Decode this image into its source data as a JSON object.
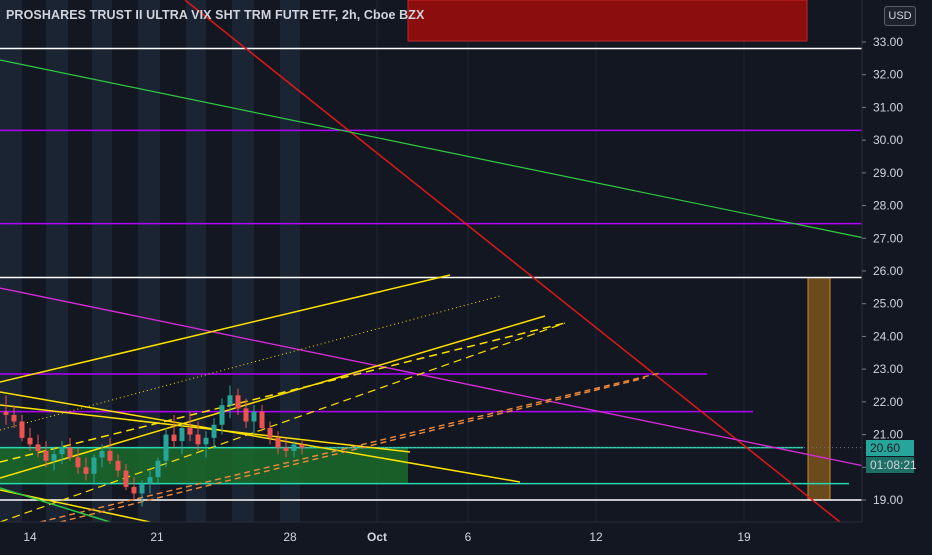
{
  "header": {
    "title": "PROSHARES TRUST II ULTRA VIX SHT TRM FUTR ETF, 2h, Cboe BZX",
    "currency_button": "USD"
  },
  "price_tags": {
    "last_price": "20.60",
    "countdown": "01:08:21"
  },
  "colors": {
    "background": "#131722",
    "axis_text": "#d1d4dc",
    "up_candle": "#26a69a",
    "down_candle": "#ef5350",
    "price_tag": "#26a69a"
  },
  "chart_data": {
    "type": "candlestick",
    "title": "PROSHARES TRUST II ULTRA VIX SHT TRM FUTR ETF, 2h, Cboe BZX",
    "y_ticks": [
      "33.00",
      "32.00",
      "31.00",
      "30.00",
      "29.00",
      "28.00",
      "27.00",
      "26.00",
      "25.00",
      "24.00",
      "23.00",
      "22.00",
      "21.00",
      "20.00",
      "19.00"
    ],
    "ylim": [
      18.5,
      34.2
    ],
    "x_ticks": [
      "14",
      "21",
      "28",
      "Oct",
      "6",
      "12",
      "19"
    ],
    "last_price": 20.6,
    "candles_approx": [
      [
        21.7,
        22.2,
        21.3,
        21.6
      ],
      [
        21.6,
        21.9,
        21.2,
        21.4
      ],
      [
        21.4,
        21.6,
        20.8,
        20.9
      ],
      [
        20.9,
        21.2,
        20.5,
        20.7
      ],
      [
        20.7,
        21.0,
        20.3,
        20.5
      ],
      [
        20.5,
        20.8,
        20.0,
        20.2
      ],
      [
        20.2,
        20.6,
        19.9,
        20.4
      ],
      [
        20.4,
        20.8,
        20.1,
        20.6
      ],
      [
        20.6,
        20.9,
        20.2,
        20.3
      ],
      [
        20.3,
        20.6,
        19.8,
        20.0
      ],
      [
        20.0,
        20.3,
        19.6,
        19.8
      ],
      [
        19.8,
        20.4,
        19.5,
        20.3
      ],
      [
        20.3,
        20.7,
        20.0,
        20.5
      ],
      [
        20.5,
        20.9,
        20.1,
        20.2
      ],
      [
        20.2,
        20.4,
        19.7,
        19.9
      ],
      [
        19.9,
        20.1,
        19.3,
        19.4
      ],
      [
        19.4,
        19.7,
        19.0,
        19.2
      ],
      [
        19.2,
        19.6,
        18.8,
        19.5
      ],
      [
        19.5,
        19.9,
        19.2,
        19.7
      ],
      [
        19.7,
        20.3,
        19.5,
        20.2
      ],
      [
        20.2,
        21.2,
        20.0,
        21.0
      ],
      [
        21.0,
        21.6,
        20.6,
        20.8
      ],
      [
        20.8,
        21.3,
        20.4,
        21.2
      ],
      [
        21.2,
        21.7,
        20.8,
        21.0
      ],
      [
        21.0,
        21.4,
        20.5,
        20.7
      ],
      [
        20.7,
        21.1,
        20.3,
        20.9
      ],
      [
        20.9,
        21.5,
        20.6,
        21.3
      ],
      [
        21.3,
        22.1,
        21.0,
        21.9
      ],
      [
        21.9,
        22.5,
        21.5,
        22.2
      ],
      [
        22.2,
        22.4,
        21.6,
        21.8
      ],
      [
        21.8,
        22.1,
        21.2,
        21.4
      ],
      [
        21.4,
        21.9,
        21.0,
        21.7
      ],
      [
        21.7,
        21.9,
        21.1,
        21.2
      ],
      [
        21.2,
        21.4,
        20.7,
        20.9
      ],
      [
        20.9,
        21.1,
        20.4,
        20.6
      ],
      [
        20.6,
        20.9,
        20.3,
        20.5
      ],
      [
        20.5,
        20.8,
        20.3,
        20.7
      ],
      [
        20.7,
        20.8,
        20.4,
        20.6
      ]
    ]
  }
}
